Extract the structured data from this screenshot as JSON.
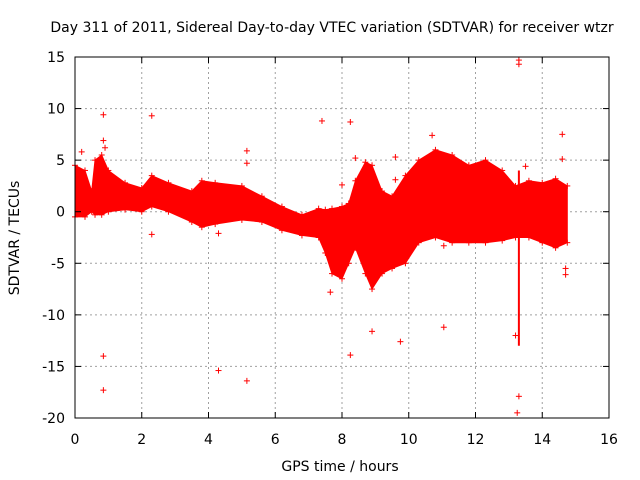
{
  "chart_data": {
    "type": "scatter",
    "title": "Day 311 of 2011, Sidereal Day-to-day VTEC variation (SDTVAR) for receiver wtzr",
    "xlabel": "GPS time / hours",
    "ylabel": "SDTVAR / TECUs",
    "xlim": [
      0,
      16
    ],
    "ylim": [
      -20,
      15
    ],
    "xticks": [
      0,
      2,
      4,
      6,
      8,
      10,
      12,
      14,
      16
    ],
    "yticks": [
      -20,
      -15,
      -10,
      -5,
      0,
      5,
      10,
      15
    ],
    "grid": true,
    "color": "#ff0000",
    "series": [
      {
        "name": "SDTVAR",
        "band": [
          {
            "x": 0.0,
            "lo": -0.5,
            "hi": 4.5
          },
          {
            "x": 0.3,
            "lo": -0.5,
            "hi": 4.0
          },
          {
            "x": 0.5,
            "lo": 0.0,
            "hi": 2.0
          },
          {
            "x": 0.6,
            "lo": -0.3,
            "hi": 5.0
          },
          {
            "x": 0.8,
            "lo": -0.3,
            "hi": 5.5
          },
          {
            "x": 1.0,
            "lo": 0.0,
            "hi": 4.0
          },
          {
            "x": 1.5,
            "lo": 0.2,
            "hi": 2.8
          },
          {
            "x": 2.0,
            "lo": 0.0,
            "hi": 2.3
          },
          {
            "x": 2.3,
            "lo": 0.5,
            "hi": 3.5
          },
          {
            "x": 2.8,
            "lo": 0.0,
            "hi": 2.8
          },
          {
            "x": 3.5,
            "lo": -1.0,
            "hi": 2.0
          },
          {
            "x": 3.8,
            "lo": -1.5,
            "hi": 3.0
          },
          {
            "x": 4.2,
            "lo": -1.2,
            "hi": 2.8
          },
          {
            "x": 5.0,
            "lo": -0.8,
            "hi": 2.5
          },
          {
            "x": 5.6,
            "lo": -1.0,
            "hi": 1.5
          },
          {
            "x": 6.2,
            "lo": -1.8,
            "hi": 0.5
          },
          {
            "x": 6.8,
            "lo": -2.3,
            "hi": -0.3
          },
          {
            "x": 7.3,
            "lo": -2.5,
            "hi": 0.3
          },
          {
            "x": 7.5,
            "lo": -4.0,
            "hi": 0.2
          },
          {
            "x": 7.7,
            "lo": -6.0,
            "hi": 0.3
          },
          {
            "x": 8.0,
            "lo": -6.5,
            "hi": 0.5
          },
          {
            "x": 8.2,
            "lo": -5.0,
            "hi": 0.8
          },
          {
            "x": 8.4,
            "lo": -3.5,
            "hi": 3.0
          },
          {
            "x": 8.7,
            "lo": -6.0,
            "hi": 4.8
          },
          {
            "x": 8.9,
            "lo": -7.5,
            "hi": 4.5
          },
          {
            "x": 9.2,
            "lo": -6.0,
            "hi": 2.0
          },
          {
            "x": 9.5,
            "lo": -5.5,
            "hi": 1.5
          },
          {
            "x": 9.9,
            "lo": -5.0,
            "hi": 3.5
          },
          {
            "x": 10.3,
            "lo": -3.0,
            "hi": 5.0
          },
          {
            "x": 10.8,
            "lo": -2.5,
            "hi": 6.0
          },
          {
            "x": 11.3,
            "lo": -3.0,
            "hi": 5.5
          },
          {
            "x": 11.8,
            "lo": -3.0,
            "hi": 4.5
          },
          {
            "x": 12.3,
            "lo": -3.0,
            "hi": 5.0
          },
          {
            "x": 12.8,
            "lo": -2.8,
            "hi": 4.0
          },
          {
            "x": 13.2,
            "lo": -2.5,
            "hi": 2.5
          },
          {
            "x": 13.6,
            "lo": -2.5,
            "hi": 3.0
          },
          {
            "x": 14.0,
            "lo": -3.0,
            "hi": 2.8
          },
          {
            "x": 14.4,
            "lo": -3.5,
            "hi": 3.2
          },
          {
            "x": 14.75,
            "lo": -3.0,
            "hi": 2.5
          }
        ],
        "spike_cluster": {
          "x": 13.3,
          "lo": -13.0,
          "hi": 4.0
        },
        "outliers": [
          {
            "x": 0.85,
            "y": 9.4
          },
          {
            "x": 0.85,
            "y": 6.9
          },
          {
            "x": 0.9,
            "y": 6.2
          },
          {
            "x": 0.2,
            "y": 5.8
          },
          {
            "x": 2.3,
            "y": 9.3
          },
          {
            "x": 2.3,
            "y": -2.2
          },
          {
            "x": 0.85,
            "y": -14.0
          },
          {
            "x": 0.85,
            "y": -17.3
          },
          {
            "x": 4.3,
            "y": -2.1
          },
          {
            "x": 4.3,
            "y": -15.4
          },
          {
            "x": 5.15,
            "y": 5.9
          },
          {
            "x": 5.15,
            "y": 4.7
          },
          {
            "x": 5.15,
            "y": -16.4
          },
          {
            "x": 7.4,
            "y": 8.8
          },
          {
            "x": 8.0,
            "y": 2.6
          },
          {
            "x": 8.25,
            "y": 8.7
          },
          {
            "x": 8.4,
            "y": 5.2
          },
          {
            "x": 7.65,
            "y": -7.8
          },
          {
            "x": 8.25,
            "y": -13.9
          },
          {
            "x": 8.9,
            "y": -11.6
          },
          {
            "x": 9.6,
            "y": 5.3
          },
          {
            "x": 9.6,
            "y": 3.1
          },
          {
            "x": 9.75,
            "y": -12.6
          },
          {
            "x": 10.7,
            "y": 7.4
          },
          {
            "x": 11.05,
            "y": -11.2
          },
          {
            "x": 11.05,
            "y": -3.3
          },
          {
            "x": 13.3,
            "y": 14.7
          },
          {
            "x": 13.3,
            "y": 14.3
          },
          {
            "x": 13.2,
            "y": -12.0
          },
          {
            "x": 13.3,
            "y": -17.9
          },
          {
            "x": 13.25,
            "y": -19.5
          },
          {
            "x": 13.5,
            "y": 4.4
          },
          {
            "x": 14.6,
            "y": 7.5
          },
          {
            "x": 14.6,
            "y": 5.1
          },
          {
            "x": 14.7,
            "y": -5.5
          },
          {
            "x": 14.7,
            "y": -6.1
          }
        ]
      }
    ]
  }
}
